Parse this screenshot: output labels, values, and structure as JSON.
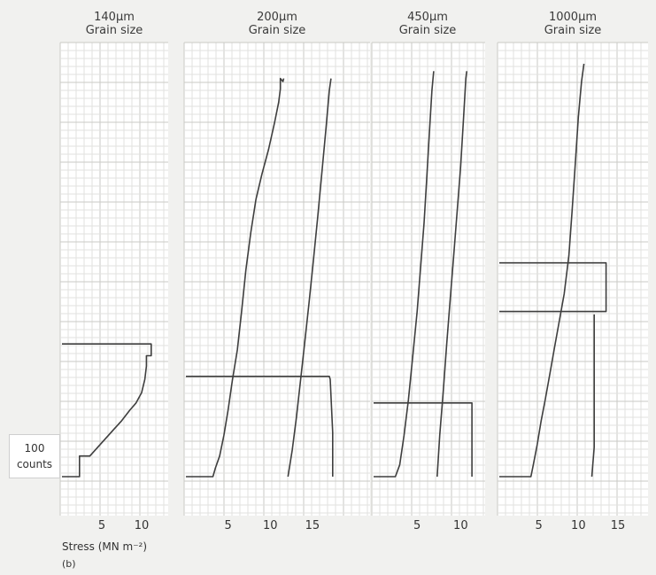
{
  "chart_data": [
    {
      "type": "line",
      "title_line1": "140µm",
      "title_line2": "Grain size",
      "xticks": [
        5,
        10
      ],
      "xlim": [
        0,
        12
      ],
      "ylim": [
        0,
        280
      ],
      "series": [
        {
          "points": [
            [
              0,
              0
            ],
            [
              2.2,
              0
            ],
            [
              2.2,
              14
            ],
            [
              3.5,
              14
            ],
            [
              4.5,
              20
            ],
            [
              5.5,
              26
            ],
            [
              6.5,
              32
            ],
            [
              7.5,
              38
            ],
            [
              8.5,
              45
            ],
            [
              9.3,
              50
            ],
            [
              10,
              57
            ],
            [
              10.4,
              66
            ],
            [
              10.6,
              75
            ],
            [
              10.6,
              82
            ],
            [
              11.2,
              82
            ],
            [
              11.2,
              90
            ],
            [
              0,
              90
            ]
          ]
        }
      ]
    },
    {
      "type": "line",
      "title_line1": "200µm",
      "title_line2": "Grain size",
      "xticks": [
        5,
        10,
        15
      ],
      "xlim": [
        0,
        17
      ],
      "ylim": [
        0,
        280
      ],
      "series": [
        {
          "points": [
            [
              0,
              0
            ],
            [
              3.2,
              0
            ],
            [
              3.5,
              6
            ],
            [
              4,
              14
            ],
            [
              4.5,
              28
            ],
            [
              5,
              45
            ],
            [
              5.5,
              65
            ],
            [
              6.1,
              86
            ],
            [
              6.6,
              112
            ],
            [
              7.1,
              140
            ],
            [
              7.7,
              166
            ],
            [
              8.3,
              188
            ],
            [
              9,
              205
            ],
            [
              9.8,
              222
            ],
            [
              10.5,
              240
            ],
            [
              11,
              254
            ],
            [
              11.2,
              263
            ],
            [
              11.2,
              270
            ],
            [
              11.5,
              268
            ],
            [
              11.6,
              270
            ]
          ]
        },
        {
          "points": [
            [
              12.1,
              0
            ],
            [
              12.6,
              18
            ],
            [
              13.1,
              40
            ],
            [
              13.6,
              66
            ],
            [
              14.1,
              92
            ],
            [
              14.6,
              118
            ],
            [
              15.1,
              146
            ],
            [
              15.6,
              175
            ],
            [
              16.1,
              205
            ],
            [
              16.6,
              236
            ],
            [
              17,
              262
            ],
            [
              17.2,
              270
            ]
          ]
        },
        {
          "points": [
            [
              0,
              68
            ],
            [
              17,
              68
            ],
            [
              17.1,
              66
            ],
            [
              17.4,
              30
            ],
            [
              17.4,
              0
            ]
          ]
        }
      ]
    },
    {
      "type": "line",
      "title_line1": "450µm",
      "title_line2": "Grain size",
      "xticks": [
        5,
        10
      ],
      "xlim": [
        0,
        12
      ],
      "ylim": [
        0,
        280
      ],
      "series": [
        {
          "points": [
            [
              0,
              0
            ],
            [
              2.5,
              0
            ],
            [
              3,
              8
            ],
            [
              3.5,
              28
            ],
            [
              4,
              52
            ],
            [
              4.5,
              82
            ],
            [
              5,
              112
            ],
            [
              5.4,
              142
            ],
            [
              5.8,
              172
            ],
            [
              6.1,
              202
            ],
            [
              6.4,
              232
            ],
            [
              6.7,
              262
            ],
            [
              6.9,
              275
            ]
          ]
        },
        {
          "points": [
            [
              7.3,
              0
            ],
            [
              7.6,
              28
            ],
            [
              8,
              58
            ],
            [
              8.4,
              90
            ],
            [
              8.8,
              120
            ],
            [
              9.2,
              150
            ],
            [
              9.6,
              180
            ],
            [
              10,
              210
            ],
            [
              10.3,
              240
            ],
            [
              10.6,
              270
            ],
            [
              10.7,
              275
            ]
          ]
        },
        {
          "points": [
            [
              0,
              50
            ],
            [
              11.3,
              50
            ],
            [
              11.3,
              0
            ]
          ]
        }
      ]
    },
    {
      "type": "line",
      "title_line1": "1000µm",
      "title_line2": "Grain size",
      "xticks": [
        5,
        10,
        15
      ],
      "xlim": [
        0,
        15
      ],
      "ylim": [
        0,
        280
      ],
      "series": [
        {
          "points": [
            [
              0,
              0
            ],
            [
              4,
              0
            ],
            [
              4.3,
              8
            ],
            [
              4.8,
              22
            ],
            [
              5.3,
              38
            ],
            [
              5.8,
              52
            ],
            [
              6.4,
              70
            ],
            [
              7,
              88
            ],
            [
              7.6,
              106
            ],
            [
              8.2,
              124
            ],
            [
              8.8,
              150
            ],
            [
              9.2,
              180
            ],
            [
              9.6,
              212
            ],
            [
              10,
              244
            ],
            [
              10.4,
              268
            ],
            [
              10.7,
              280
            ]
          ]
        },
        {
          "points": [
            [
              0,
              145
            ],
            [
              13.5,
              145
            ],
            [
              13.5,
              112
            ],
            [
              0,
              112
            ]
          ]
        },
        {
          "points": [
            [
              11.7,
              0
            ],
            [
              12,
              20
            ],
            [
              12,
              110
            ]
          ]
        }
      ]
    }
  ],
  "y_scale_label": {
    "value": "100",
    "unit": "counts"
  },
  "xlabel": "Stress (MN m⁻²)",
  "sublabel": "(b)",
  "colors": {
    "trace": "#3e3e3e",
    "grid_minor": "#e2e2df",
    "grid_major": "#cacac6",
    "panel_bg": "#ffffff"
  }
}
